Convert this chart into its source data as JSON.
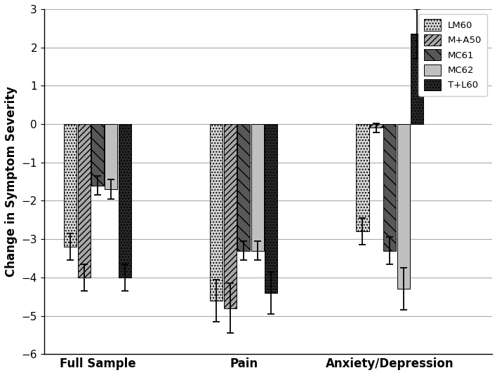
{
  "groups": [
    "Full Sample",
    "Pain",
    "Anxiety/Depression"
  ],
  "series": [
    "LM60",
    "M+A50",
    "MC61",
    "MC62",
    "T+L60"
  ],
  "values": [
    [
      -3.2,
      -4.0,
      -1.6,
      -1.7,
      -4.0
    ],
    [
      -4.6,
      -4.8,
      -3.3,
      -3.3,
      -4.4
    ],
    [
      -2.8,
      -0.1,
      -3.3,
      -4.3,
      2.35
    ]
  ],
  "errors": [
    [
      0.35,
      0.35,
      0.25,
      0.25,
      0.35
    ],
    [
      0.55,
      0.65,
      0.25,
      0.25,
      0.55
    ],
    [
      0.35,
      0.12,
      0.35,
      0.55,
      0.65
    ]
  ],
  "ylabel": "Change in Symptom Severity",
  "ylim": [
    -6,
    3
  ],
  "yticks": [
    -6,
    -5,
    -4,
    -3,
    -2,
    -1,
    0,
    1,
    2,
    3
  ],
  "bar_width": 0.13,
  "legend_labels": [
    "LM60",
    "M+A50",
    "MC61",
    "MC62",
    "T+L60"
  ],
  "group_positions": [
    1.0,
    2.5,
    4.0
  ]
}
